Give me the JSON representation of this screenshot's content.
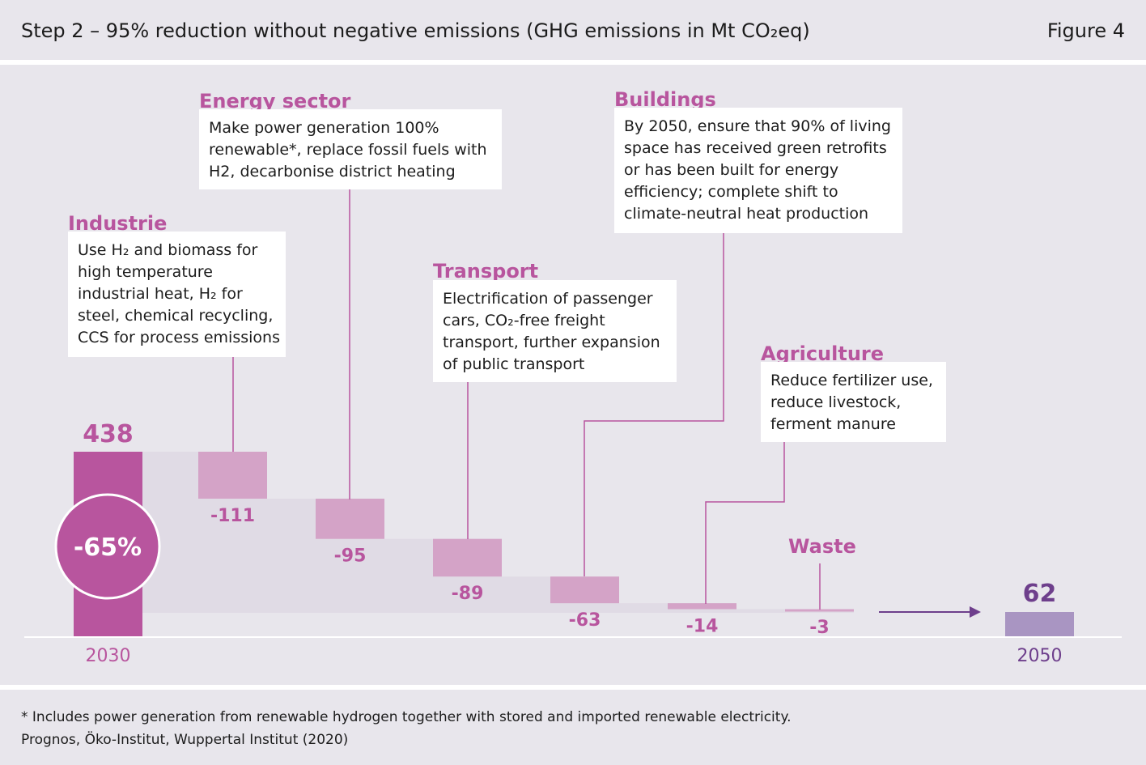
{
  "header": {
    "title": "Step 2 – 95% reduction without negative emissions (GHG emissions in Mt CO₂eq)",
    "figure": "Figure 4"
  },
  "footer": {
    "note": "* Includes power generation from renewable hydrogen together with stored and imported renewable electricity.",
    "source": "Prognos, Öko-Institut, Wuppertal Institut (2020)"
  },
  "colors": {
    "start_bar": "#b8559e",
    "step_bar": "#d4a3c7",
    "end_bar": "#a995c2",
    "connector": "#e0dbe5",
    "accent_text": "#b8559e",
    "end_text": "#6e3f8c",
    "panel_bg": "#e8e6ec"
  },
  "annotations": {
    "industrie": {
      "title": "Industrie",
      "text": [
        "Use H₂ and biomass for",
        "high temperature",
        "industrial heat, H₂ for",
        "steel, chemical recycling,",
        "CCS for process emissions"
      ]
    },
    "energy": {
      "title": "Energy sector",
      "text": [
        "Make power generation 100%",
        "renewable*, replace fossil fuels with",
        "H2, decarbonise district heating"
      ]
    },
    "transport": {
      "title": "Transport",
      "text": [
        "Electrification of passenger",
        "cars, CO₂-free freight",
        "transport, further expansion",
        "of public transport"
      ]
    },
    "buildings": {
      "title": "Buildings",
      "text": [
        "By 2050, ensure that 90% of living",
        "space has received green retrofits",
        "or has been built for energy",
        "efficiency; complete shift to",
        "climate-neutral heat production"
      ]
    },
    "agriculture": {
      "title": "Agriculture",
      "text": [
        "Reduce fertilizer use,",
        "reduce livestock,",
        "ferment manure"
      ]
    },
    "waste": {
      "title": "Waste"
    }
  },
  "chart_data": {
    "type": "bar",
    "subtype": "waterfall",
    "categories": [
      "2030",
      "Industrie",
      "Energy sector",
      "Transport",
      "Buildings",
      "Agriculture",
      "Waste",
      "2050"
    ],
    "values": [
      438,
      -111,
      -95,
      -89,
      -63,
      -14,
      -3,
      62
    ],
    "value_labels": [
      "438",
      "-111",
      "-95",
      "-89",
      "-63",
      "-14",
      "-3",
      "62"
    ],
    "x_labels": [
      "2030",
      "",
      "",
      "",
      "",
      "",
      "",
      "2050"
    ],
    "reduction_badge": "-65%",
    "ylim": [
      0,
      438
    ],
    "grid": false
  }
}
